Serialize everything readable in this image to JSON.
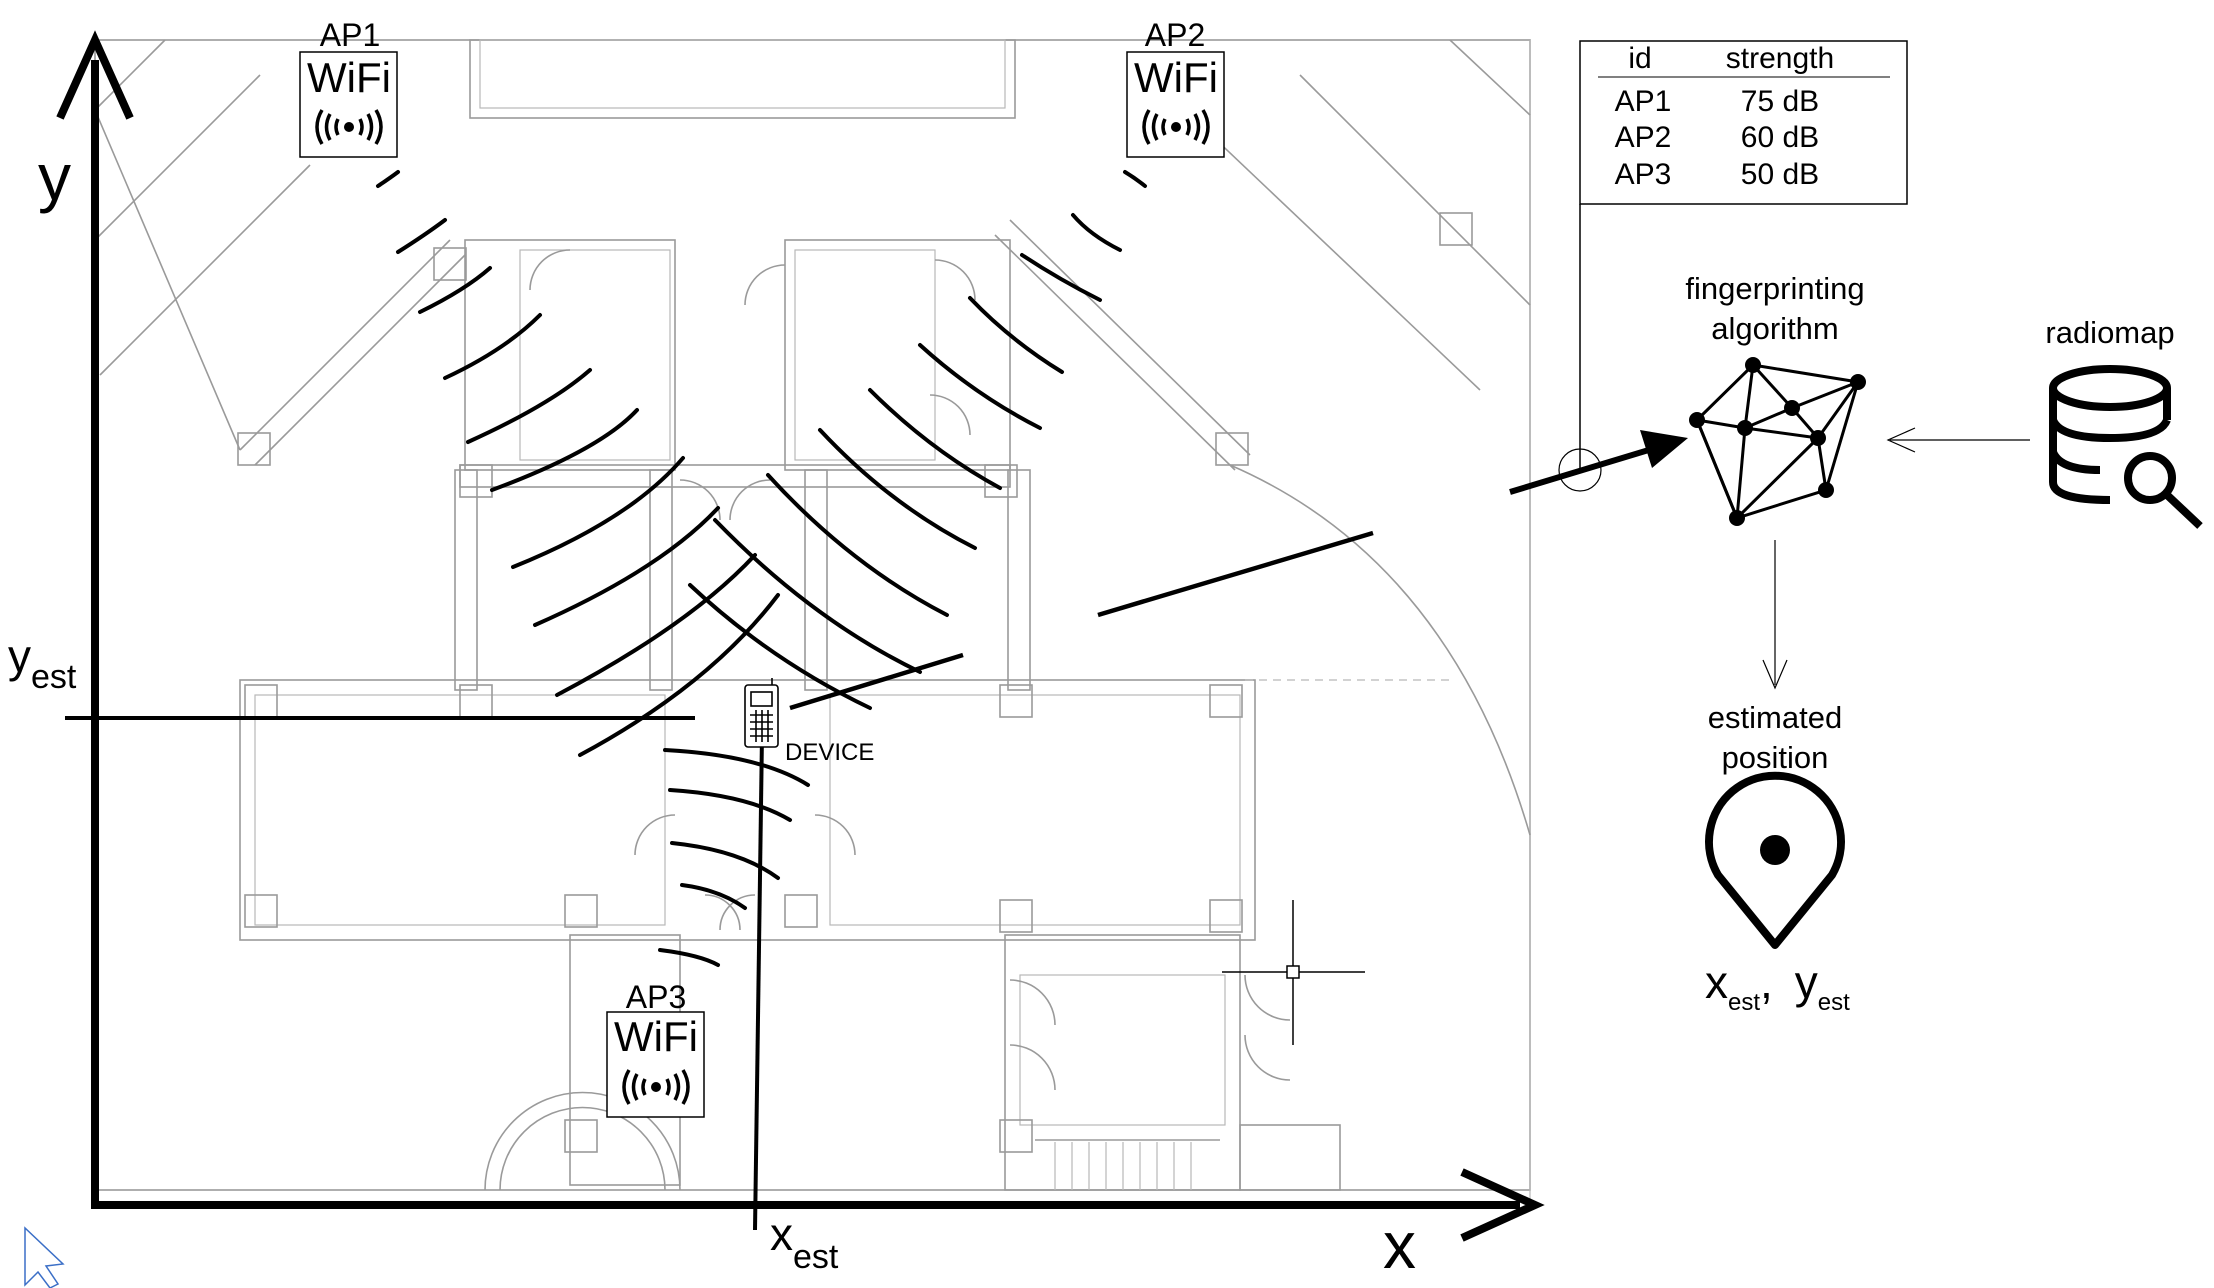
{
  "axes": {
    "x_label": "x",
    "y_label": "y",
    "x_est": "x",
    "y_est": "y",
    "est_sub": "est"
  },
  "access_points": [
    {
      "id": "AP1",
      "wifi": "WiFi"
    },
    {
      "id": "AP2",
      "wifi": "WiFi"
    },
    {
      "id": "AP3",
      "wifi": "WiFi"
    }
  ],
  "device_label": "DEVICE",
  "table": {
    "headers": [
      "id",
      "strength"
    ],
    "rows": [
      {
        "id": "AP1",
        "strength": "75 dB"
      },
      {
        "id": "AP2",
        "strength": "60 dB"
      },
      {
        "id": "AP3",
        "strength": "50 dB"
      }
    ]
  },
  "algorithm": {
    "line1": "fingerprinting",
    "line2": "algorithm"
  },
  "radiomap_label": "radiomap",
  "estimated": {
    "line1": "estimated",
    "line2": "position"
  },
  "output": {
    "x": "x",
    "y": "y",
    "sub": "est",
    "sep": ","
  }
}
